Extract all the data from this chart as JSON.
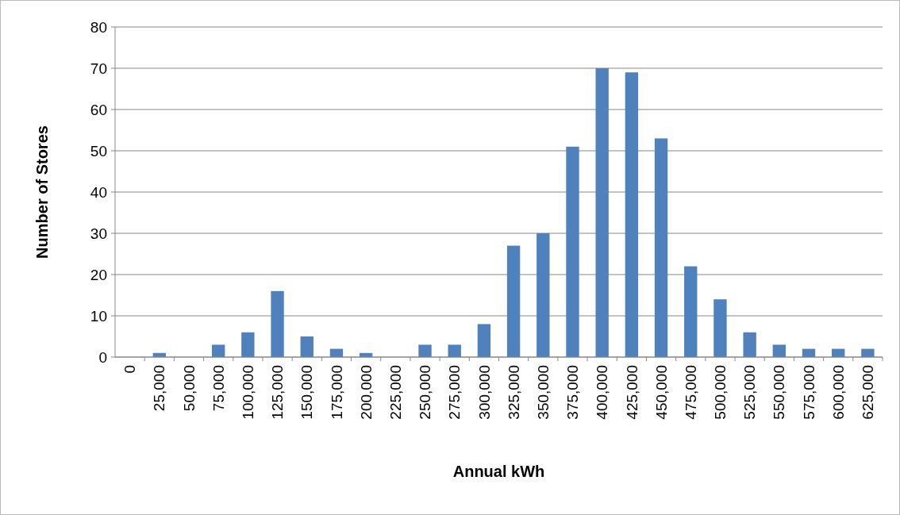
{
  "chart_data": {
    "type": "bar",
    "xlabel": "Annual kWh",
    "ylabel": "Number of Stores",
    "categories": [
      "0",
      "25,000",
      "50,000",
      "75,000",
      "100,000",
      "125,000",
      "150,000",
      "175,000",
      "200,000",
      "225,000",
      "250,000",
      "275,000",
      "300,000",
      "325,000",
      "350,000",
      "375,000",
      "400,000",
      "425,000",
      "450,000",
      "475,000",
      "500,000",
      "525,000",
      "550,000",
      "575,000",
      "600,000",
      "625,000"
    ],
    "values": [
      0,
      1,
      0,
      3,
      6,
      16,
      5,
      2,
      1,
      0,
      3,
      3,
      8,
      27,
      30,
      51,
      70,
      69,
      53,
      22,
      14,
      6,
      3,
      2,
      2,
      2
    ],
    "color": "#4f81bd",
    "ylim": [
      0,
      80
    ],
    "yticks": [
      0,
      10,
      20,
      30,
      40,
      50,
      60,
      70,
      80
    ],
    "grid": "y"
  }
}
